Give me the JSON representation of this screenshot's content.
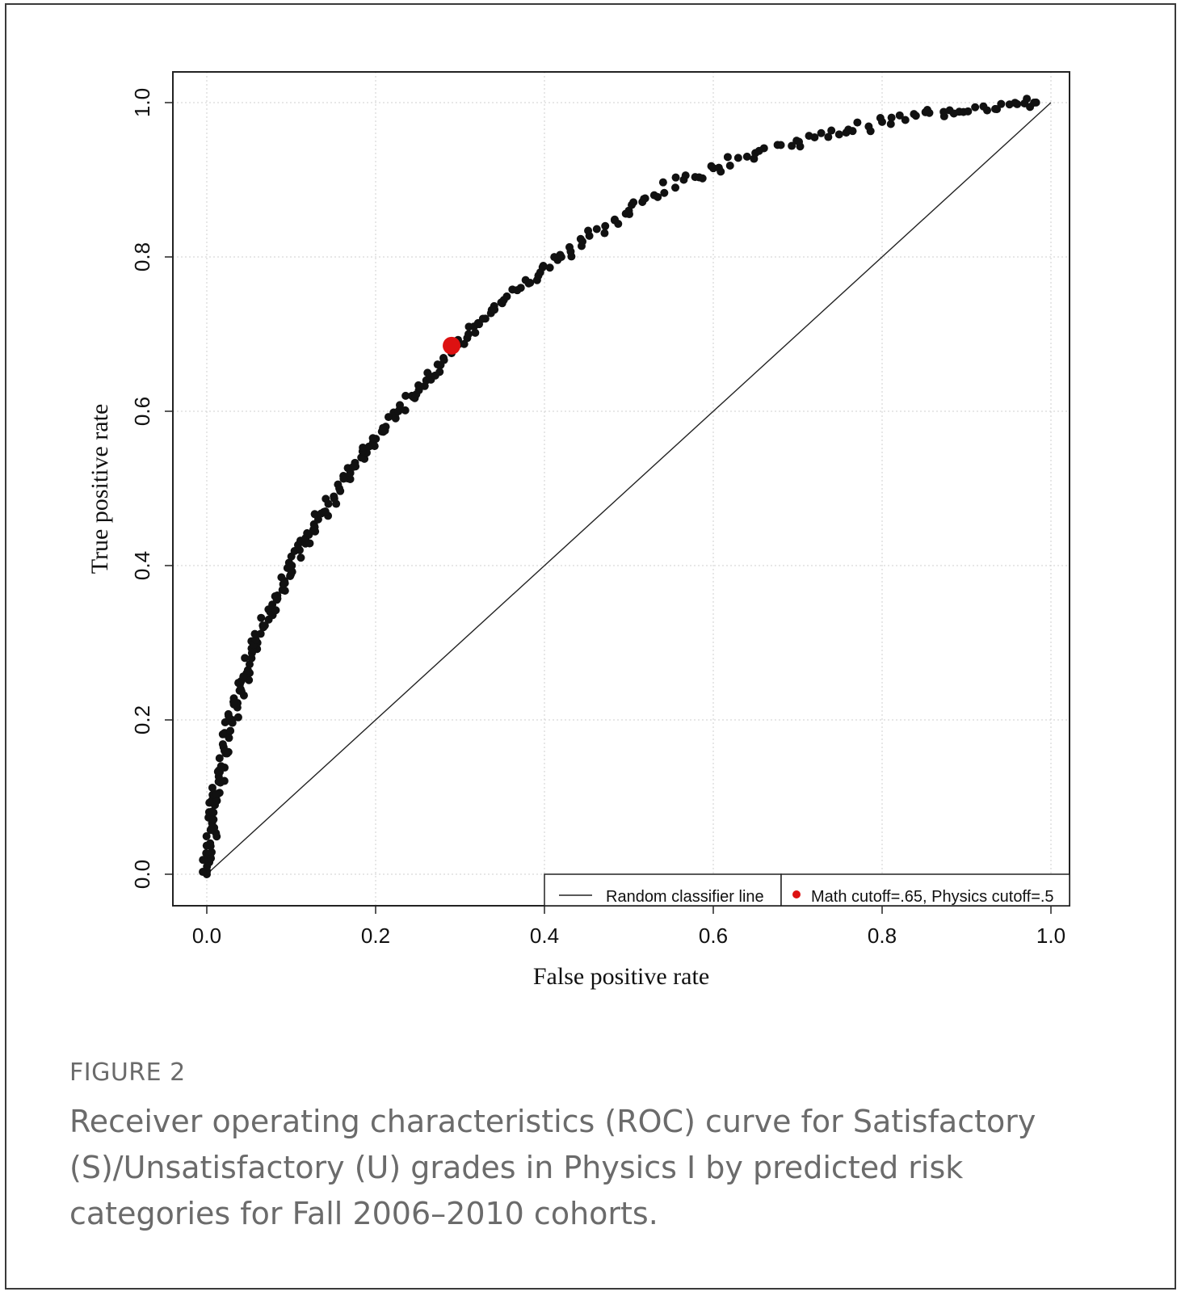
{
  "figure": {
    "label": "FIGURE 2",
    "caption": "Receiver operating characteristics (ROC) curve for Satisfactory (S)/Unsatisfactory (U) grades in Physics I by predicted risk categories for Fall 2006–2010 cohorts."
  },
  "colors": {
    "points": "#111111",
    "highlight": "#dd1111",
    "axis": "#222222",
    "grid": "#cfcfcf"
  },
  "chart_data": {
    "type": "scatter",
    "title": "",
    "xlabel": "False positive rate",
    "ylabel": "True positive rate",
    "xlim": [
      0.0,
      1.0
    ],
    "ylim": [
      0.0,
      1.0
    ],
    "grid": true,
    "x_ticks": [
      "0.0",
      "0.2",
      "0.4",
      "0.6",
      "0.8",
      "1.0"
    ],
    "y_ticks": [
      "0.0",
      "0.2",
      "0.4",
      "0.6",
      "0.8",
      "1.0"
    ],
    "legend_position": "bottom-right",
    "series": [
      {
        "name": "ROC points",
        "points": [
          [
            0.0,
            0.0
          ],
          [
            0.002,
            0.02
          ],
          [
            0.004,
            0.04
          ],
          [
            0.006,
            0.06
          ],
          [
            0.008,
            0.08
          ],
          [
            0.011,
            0.1
          ],
          [
            0.014,
            0.12
          ],
          [
            0.017,
            0.14
          ],
          [
            0.021,
            0.16
          ],
          [
            0.025,
            0.18
          ],
          [
            0.03,
            0.2
          ],
          [
            0.035,
            0.22
          ],
          [
            0.04,
            0.24
          ],
          [
            0.047,
            0.26
          ],
          [
            0.053,
            0.28
          ],
          [
            0.06,
            0.3
          ],
          [
            0.067,
            0.32
          ],
          [
            0.075,
            0.34
          ],
          [
            0.083,
            0.36
          ],
          [
            0.092,
            0.38
          ],
          [
            0.1,
            0.4
          ],
          [
            0.11,
            0.42
          ],
          [
            0.121,
            0.44
          ],
          [
            0.132,
            0.46
          ],
          [
            0.144,
            0.48
          ],
          [
            0.157,
            0.5
          ],
          [
            0.17,
            0.52
          ],
          [
            0.183,
            0.54
          ],
          [
            0.197,
            0.56
          ],
          [
            0.212,
            0.58
          ],
          [
            0.227,
            0.6
          ],
          [
            0.243,
            0.62
          ],
          [
            0.26,
            0.64
          ],
          [
            0.277,
            0.66
          ],
          [
            0.29,
            0.68
          ],
          [
            0.31,
            0.7
          ],
          [
            0.33,
            0.72
          ],
          [
            0.35,
            0.74
          ],
          [
            0.372,
            0.76
          ],
          [
            0.395,
            0.78
          ],
          [
            0.42,
            0.8
          ],
          [
            0.445,
            0.82
          ],
          [
            0.472,
            0.84
          ],
          [
            0.5,
            0.86
          ],
          [
            0.53,
            0.88
          ],
          [
            0.565,
            0.9
          ],
          [
            0.6,
            0.915
          ],
          [
            0.64,
            0.93
          ],
          [
            0.68,
            0.945
          ],
          [
            0.72,
            0.955
          ],
          [
            0.76,
            0.965
          ],
          [
            0.8,
            0.975
          ],
          [
            0.84,
            0.983
          ],
          [
            0.88,
            0.99
          ],
          [
            0.92,
            0.995
          ],
          [
            0.96,
            0.998
          ],
          [
            0.98,
            1.0
          ]
        ]
      },
      {
        "name": "Random classifier line",
        "x": [
          0.0,
          1.0
        ],
        "y": [
          0.0,
          1.0
        ]
      },
      {
        "name": "Math cutoff=.65, Physics cutoff=.5",
        "points": [
          [
            0.29,
            0.685
          ]
        ]
      }
    ],
    "legend": [
      "Random classifier line",
      "Math cutoff=.65, Physics cutoff=.5"
    ]
  }
}
